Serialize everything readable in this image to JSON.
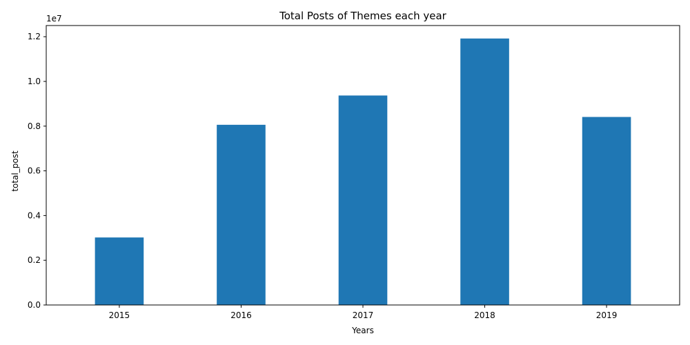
{
  "chart_data": {
    "type": "bar",
    "title": "Total Posts of Themes each year",
    "xlabel": "Years",
    "ylabel": "total_post",
    "offset_label": "1e7",
    "categories": [
      "2015",
      "2016",
      "2017",
      "2018",
      "2019"
    ],
    "values": [
      3020000,
      8060000,
      9370000,
      11920000,
      8410000
    ],
    "ylim": [
      0,
      12500000
    ],
    "yticks": [
      0,
      2000000,
      4000000,
      6000000,
      8000000,
      10000000,
      12000000
    ],
    "ytick_labels": [
      "0.0",
      "0.2",
      "0.4",
      "0.6",
      "0.8",
      "1.0",
      "1.2"
    ],
    "bar_color": "#1f77b4",
    "grid": false,
    "legend": "none"
  }
}
